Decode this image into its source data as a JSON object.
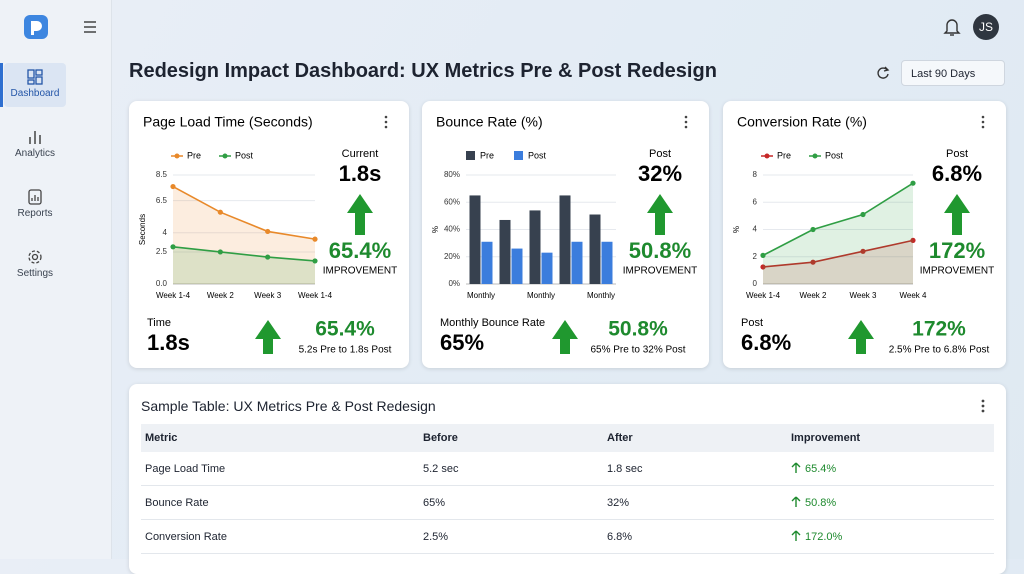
{
  "header": {
    "title": "Redesign Impact Dashboard: UX Metrics Pre & Post Redesign",
    "date_range": "Last 90 Days",
    "avatar": "JS"
  },
  "sidebar": {
    "nav": [
      "Dashboard",
      "Analytics",
      "Reports",
      "Settings"
    ]
  },
  "chart_data": [
    {
      "type": "line",
      "title": "Page Load Time (Seconds)",
      "y_label": "Seconds",
      "categories": [
        "Week 1-4",
        "Week 2",
        "Week 3",
        "Week 1-4"
      ],
      "series": [
        {
          "name": "Pre",
          "color": "#e8892a",
          "values": [
            7.6,
            5.6,
            4.1,
            3.5
          ]
        },
        {
          "name": "Post",
          "color": "#2f9e44",
          "values": [
            2.9,
            2.5,
            2.1,
            1.8
          ]
        }
      ],
      "ylim": [
        0,
        8.5
      ],
      "yticks": [
        {
          "value": 0,
          "label": "0.0"
        },
        2.5,
        4,
        6.5,
        8.5
      ],
      "area": true,
      "grid": true
    },
    {
      "type": "bar",
      "title": "Bounce Rate (%)",
      "y_label": "%",
      "categories": [
        "Monthly",
        null,
        "Monthly",
        null,
        "Monthly"
      ],
      "series": [
        {
          "name": "Pre",
          "color": "#37414f",
          "values": [
            65,
            47,
            54,
            65,
            51
          ]
        },
        {
          "name": "Post",
          "color": "#3b7ddd",
          "values": [
            31,
            26,
            23,
            31,
            31
          ]
        }
      ],
      "ylim": [
        0,
        80
      ],
      "yticks": [
        {
          "value": 0,
          "label": "0%"
        },
        {
          "value": 20,
          "label": "20%"
        },
        {
          "value": 40,
          "label": "40%"
        },
        {
          "value": 60,
          "label": "60%"
        },
        {
          "value": 80,
          "label": "80%"
        }
      ],
      "grid": true
    },
    {
      "type": "line",
      "title": "Conversion Rate (%)",
      "y_label": "%",
      "categories": [
        "Week 1-4",
        "Week 2",
        "Week 3",
        "Week 4"
      ],
      "series": [
        {
          "name": "Pre",
          "color": "#c62828",
          "values": [
            1.25,
            1.6,
            2.4,
            3.2
          ]
        },
        {
          "name": "Post",
          "color": "#2f9e44",
          "values": [
            2.1,
            4.0,
            5.1,
            7.4
          ]
        }
      ],
      "ylim": [
        0,
        8
      ],
      "yticks": [
        0,
        2,
        4,
        6,
        8
      ],
      "area": true,
      "grid": true
    }
  ],
  "cards": [
    {
      "kpi_label": "Current",
      "kpi_value": "1.8s",
      "kpi_pct": "65.4%",
      "kpi_caption": "IMPROVEMENT",
      "foot_label": "Time",
      "foot_value": "1.8s",
      "foot_pct": "65.4%",
      "foot_caption": "5.2s Pre to 1.8s Post"
    },
    {
      "kpi_label": "Post",
      "kpi_value": "32%",
      "kpi_pct": "50.8%",
      "kpi_caption": "IMPROVEMENT",
      "foot_label": "Monthly Bounce Rate",
      "foot_value": "65%",
      "foot_pct": "50.8%",
      "foot_caption": "65% Pre to 32% Post"
    },
    {
      "kpi_label": "Post",
      "kpi_value": "6.8%",
      "kpi_pct": "172%",
      "kpi_caption": "IMPROVEMENT",
      "foot_label": "Post",
      "foot_value": "6.8%",
      "foot_pct": "172%",
      "foot_caption": "2.5% Pre to 6.8% Post"
    }
  ],
  "table": {
    "title": "Sample Table: UX Metrics Pre & Post Redesign",
    "columns": [
      "Metric",
      "Before",
      "After",
      "Improvement"
    ],
    "rows": [
      [
        "Page Load Time",
        "5.2 sec",
        "1.8 sec",
        "65.4%"
      ],
      [
        "Bounce Rate",
        "65%",
        "32%",
        "50.8%"
      ],
      [
        "Conversion Rate",
        "2.5%",
        "6.8%",
        "172.0%"
      ]
    ]
  }
}
